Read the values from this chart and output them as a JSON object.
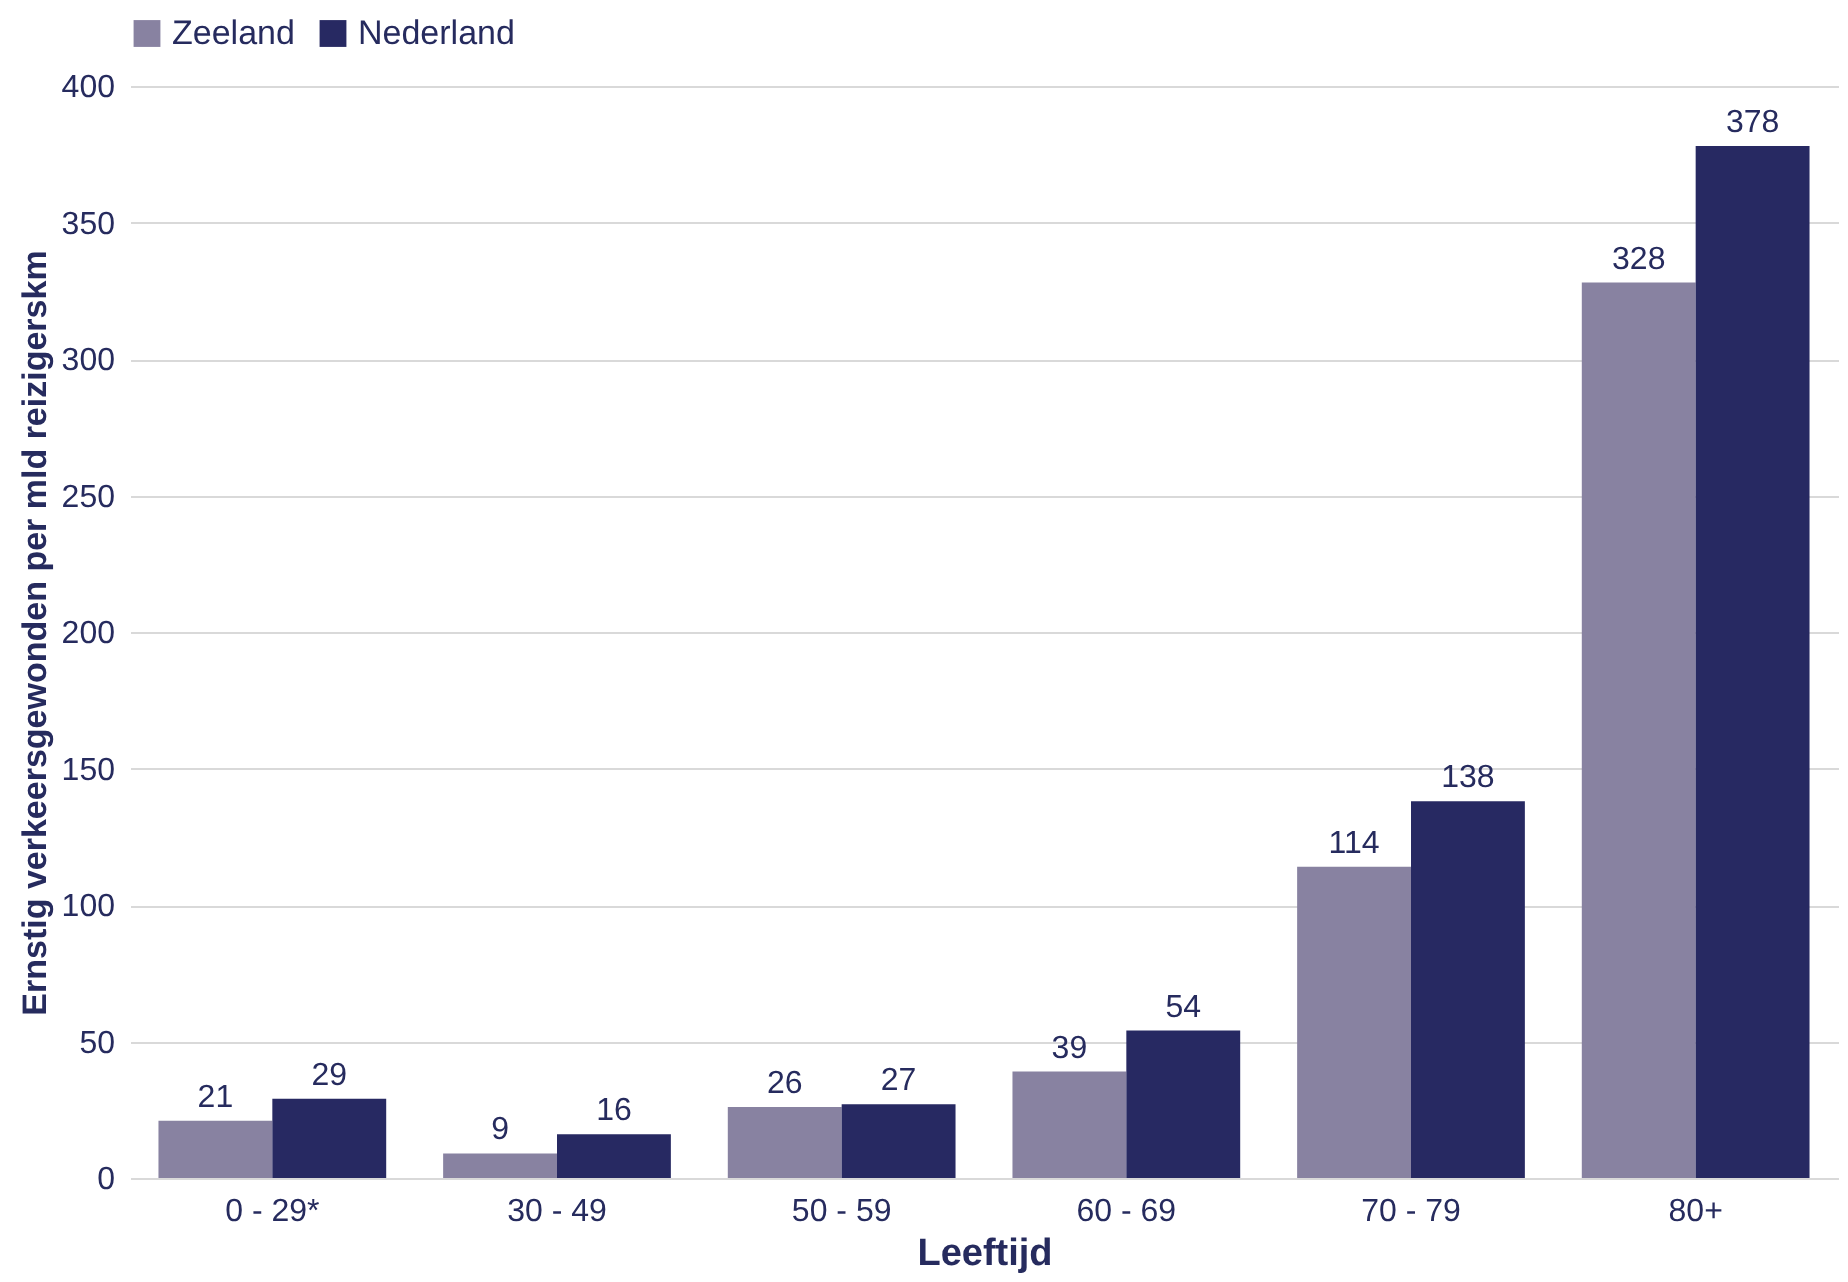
{
  "chart_data": {
    "type": "bar",
    "xlabel": "Leeftijd",
    "ylabel": "Ernstig verkeersgewonden per mld reizigerskm",
    "categories": [
      "0 - 29*",
      "30 - 49",
      "50 - 59",
      "60 - 69",
      "70 - 79",
      "80+"
    ],
    "series": [
      {
        "name": "Zeeland",
        "color": "#8882a1",
        "values": [
          21,
          9,
          26,
          39,
          114,
          328
        ]
      },
      {
        "name": "Nederland",
        "color": "#272962",
        "values": [
          29,
          16,
          27,
          54,
          138,
          378
        ]
      }
    ],
    "ylim": [
      0,
      400
    ],
    "yticks": [
      0,
      50,
      100,
      150,
      200,
      250,
      300,
      350,
      400
    ],
    "grid": "y",
    "legend": "top",
    "data_labels": true
  }
}
